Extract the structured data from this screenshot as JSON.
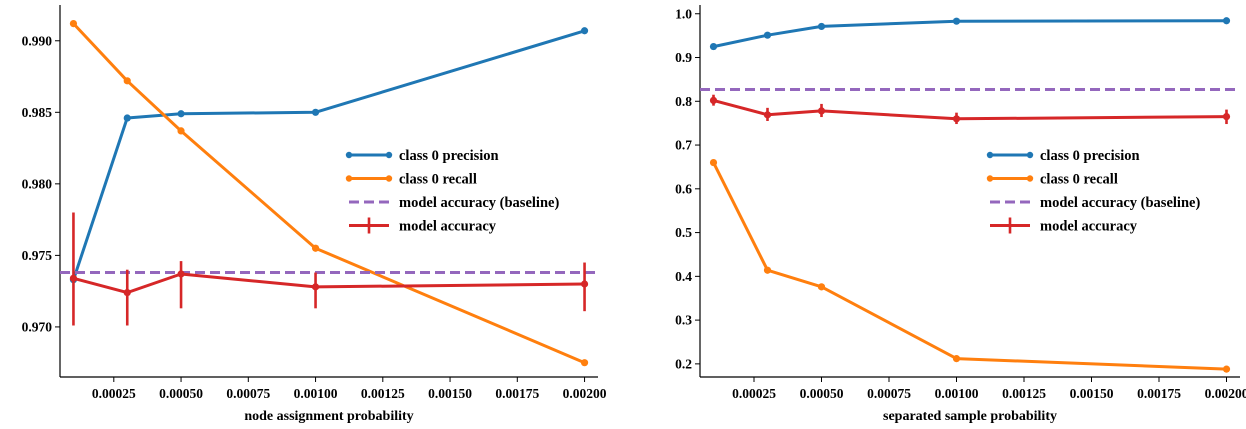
{
  "chart_data": [
    {
      "type": "line",
      "xlabel": "node assignment probability",
      "ylabel": "",
      "xlim": [
        5e-05,
        0.00205
      ],
      "ylim": [
        0.9665,
        0.9925
      ],
      "xticks": [
        0.00025,
        0.0005,
        0.00075,
        0.001,
        0.00125,
        0.0015,
        0.00175,
        0.002
      ],
      "xtick_labels": [
        "0.00025",
        "0.00050",
        "0.00075",
        "0.00100",
        "0.00125",
        "0.00150",
        "0.00175",
        "0.00200"
      ],
      "yticks": [
        0.97,
        0.975,
        0.98,
        0.985,
        0.99
      ],
      "ytick_labels": [
        "0.970",
        "0.975",
        "0.980",
        "0.985",
        "0.990"
      ],
      "grid": false,
      "legend_position": "center-right",
      "x": [
        0.0001,
        0.0003,
        0.0005,
        0.001,
        0.002
      ],
      "series": [
        {
          "name": "class 0 precision",
          "color": "#1f77b4",
          "values": [
            0.9733,
            0.9846,
            0.9849,
            0.985,
            0.9907
          ]
        },
        {
          "name": "class 0 recall",
          "color": "#ff7f0e",
          "values": [
            0.9912,
            0.9872,
            0.9837,
            0.9755,
            0.9675
          ]
        },
        {
          "name": "model accuracy (baseline)",
          "color": "#9467bd",
          "style": "dashed",
          "baseline": 0.9738
        },
        {
          "name": "model accuracy",
          "color": "#d62728",
          "values": [
            0.9734,
            0.9724,
            0.9737,
            0.9728,
            0.973
          ],
          "err_low": [
            0.9701,
            0.9701,
            0.9713,
            0.9713,
            0.9711
          ],
          "err_high": [
            0.978,
            0.974,
            0.9746,
            0.9738,
            0.9745
          ]
        }
      ]
    },
    {
      "type": "line",
      "xlabel": "separated sample probability",
      "ylabel": "",
      "xlim": [
        5e-05,
        0.00205
      ],
      "ylim": [
        0.17,
        1.02
      ],
      "xticks": [
        0.00025,
        0.0005,
        0.00075,
        0.001,
        0.00125,
        0.0015,
        0.00175,
        0.002
      ],
      "xtick_labels": [
        "0.00025",
        "0.00050",
        "0.00075",
        "0.00100",
        "0.00125",
        "0.00150",
        "0.00175",
        "0.00200"
      ],
      "yticks": [
        0.2,
        0.3,
        0.4,
        0.5,
        0.6,
        0.7,
        0.8,
        0.9,
        1.0
      ],
      "ytick_labels": [
        "0.2",
        "0.3",
        "0.4",
        "0.5",
        "0.6",
        "0.7",
        "0.8",
        "0.9",
        "1.0"
      ],
      "grid": false,
      "legend_position": "center-right",
      "x": [
        0.0001,
        0.0003,
        0.0005,
        0.001,
        0.002
      ],
      "series": [
        {
          "name": "class 0 precision",
          "color": "#1f77b4",
          "values": [
            0.925,
            0.951,
            0.971,
            0.983,
            0.984
          ]
        },
        {
          "name": "class 0 recall",
          "color": "#ff7f0e",
          "values": [
            0.66,
            0.414,
            0.376,
            0.212,
            0.188
          ]
        },
        {
          "name": "model accuracy (baseline)",
          "color": "#9467bd",
          "style": "dashed",
          "baseline": 0.827
        },
        {
          "name": "model accuracy",
          "color": "#d62728",
          "values": [
            0.802,
            0.769,
            0.778,
            0.76,
            0.765
          ],
          "err_low": [
            0.79,
            0.755,
            0.764,
            0.748,
            0.748
          ],
          "err_high": [
            0.815,
            0.785,
            0.794,
            0.774,
            0.781
          ]
        }
      ]
    }
  ]
}
